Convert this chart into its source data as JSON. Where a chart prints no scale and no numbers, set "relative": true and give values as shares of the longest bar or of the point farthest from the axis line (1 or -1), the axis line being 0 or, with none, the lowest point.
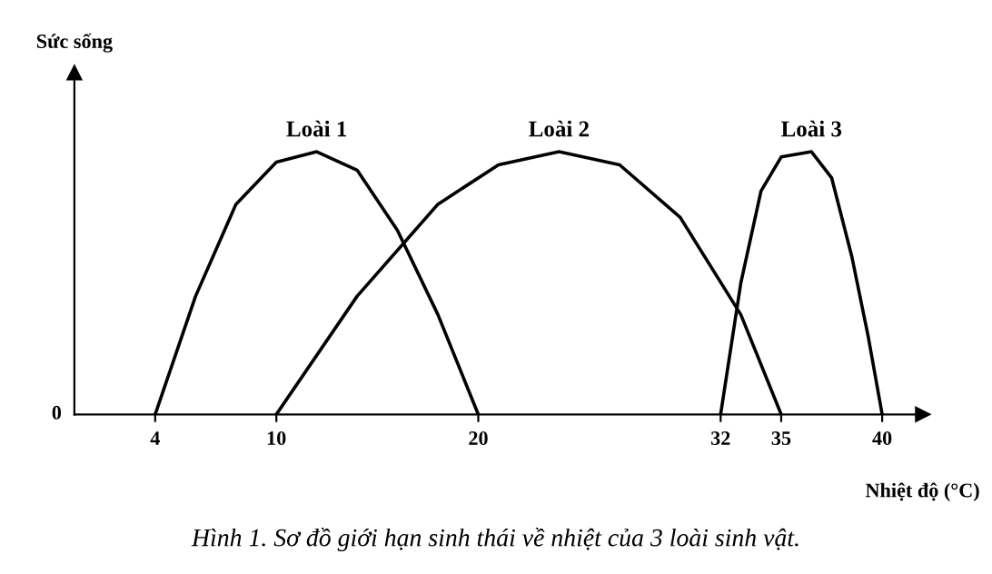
{
  "chart_data": {
    "type": "line",
    "relative": true,
    "ylabel": "Sức sống",
    "xlabel": "Nhiệt độ (°C)",
    "xlim": [
      0,
      42
    ],
    "xticks": [
      4,
      10,
      20,
      32,
      35,
      40
    ],
    "tick_labels": "x",
    "series": [
      {
        "name": "Loài 1",
        "color": "#000000",
        "x": [
          4,
          6,
          8,
          10,
          12,
          14,
          16,
          18,
          20
        ],
        "values": [
          0,
          0.45,
          0.8,
          0.96,
          1,
          0.93,
          0.7,
          0.38,
          0
        ]
      },
      {
        "name": "Loài 2",
        "color": "#000000",
        "x": [
          10,
          14,
          18,
          21,
          24,
          27,
          30,
          33,
          35
        ],
        "values": [
          0,
          0.45,
          0.8,
          0.95,
          1,
          0.95,
          0.75,
          0.38,
          0
        ]
      },
      {
        "name": "Loài 3",
        "color": "#000000",
        "x": [
          32,
          33,
          34,
          35,
          36.5,
          37.5,
          38.5,
          39.3,
          40
        ],
        "values": [
          0,
          0.5,
          0.85,
          0.98,
          1,
          0.9,
          0.6,
          0.3,
          0
        ]
      }
    ],
    "annotations": [
      "0",
      "Hình 1. Sơ đồ giới hạn sinh thái về nhiệt của 3 loài sinh vật."
    ]
  }
}
